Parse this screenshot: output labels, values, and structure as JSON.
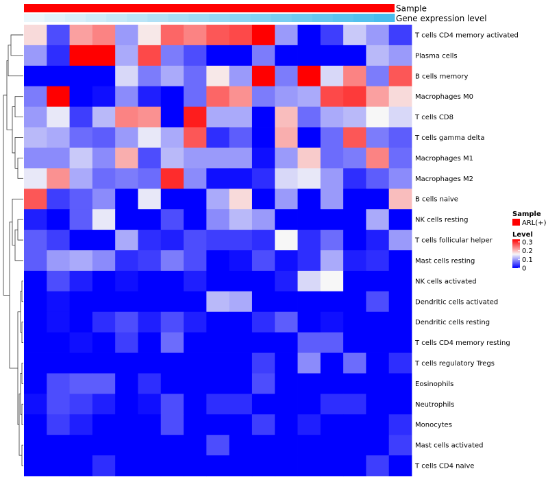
{
  "chart_data": {
    "type": "heatmap",
    "annotations": [
      {
        "label": "Sample",
        "color": "#ff0000"
      },
      {
        "label": "Gene expression level",
        "values": [
          0.02,
          0.05,
          0.08,
          0.11,
          0.14,
          0.17,
          0.2,
          0.23,
          0.26,
          0.29,
          0.32,
          0.35,
          0.38,
          0.41,
          0.44,
          0.47,
          0.5,
          0.53
        ]
      }
    ],
    "rows": [
      "T cells CD4 memory activated",
      "Plasma cells",
      "B cells memory",
      "Macrophages M0",
      "T cells CD8",
      "T cells gamma delta",
      "Macrophages M1",
      "Macrophages M2",
      "B cells naive",
      "NK cells resting",
      "T cells follicular helper",
      "Mast cells resting",
      "NK cells activated",
      "Dendritic cells activated",
      "Dendritic cells resting",
      "T cells CD4 memory resting",
      "T cells regulatory  Tregs",
      "Eosinophils",
      "Neutrophils",
      "Monocytes",
      "Mast cells activated",
      "T cells CD4 naive"
    ],
    "values": [
      [
        0.18,
        0.05,
        0.22,
        0.24,
        0.1,
        0.17,
        0.26,
        0.24,
        0.27,
        0.28,
        0.33,
        0.1,
        0.0,
        0.04,
        0.13,
        0.1,
        0.04
      ],
      [
        0.1,
        0.03,
        0.33,
        0.34,
        0.11,
        0.28,
        0.08,
        0.05,
        0.0,
        0.0,
        0.08,
        0.0,
        0.0,
        0.0,
        0.0,
        0.12,
        0.1
      ],
      [
        0.0,
        0.0,
        0.0,
        0.0,
        0.14,
        0.08,
        0.11,
        0.07,
        0.17,
        0.1,
        0.33,
        0.08,
        0.33,
        0.14,
        0.24,
        0.08,
        0.27
      ],
      [
        0.08,
        0.33,
        0.0,
        0.01,
        0.09,
        0.02,
        0.0,
        0.07,
        0.26,
        0.23,
        0.08,
        0.1,
        0.11,
        0.28,
        0.29,
        0.22,
        0.18
      ],
      [
        0.1,
        0.15,
        0.04,
        0.12,
        0.24,
        0.23,
        0.0,
        0.31,
        0.11,
        0.11,
        0.0,
        0.2,
        0.07,
        0.11,
        0.12,
        0.16,
        0.14
      ],
      [
        0.12,
        0.11,
        0.07,
        0.06,
        0.1,
        0.15,
        0.11,
        0.27,
        0.03,
        0.06,
        0.0,
        0.21,
        0.0,
        0.07,
        0.27,
        0.08,
        0.06
      ],
      [
        0.09,
        0.09,
        0.13,
        0.09,
        0.21,
        0.05,
        0.12,
        0.1,
        0.1,
        0.1,
        0.01,
        0.1,
        0.19,
        0.07,
        0.08,
        0.24,
        0.07
      ],
      [
        0.15,
        0.23,
        0.11,
        0.07,
        0.08,
        0.07,
        0.3,
        0.09,
        0.01,
        0.01,
        0.03,
        0.14,
        0.15,
        0.1,
        0.03,
        0.06,
        0.09
      ],
      [
        0.27,
        0.04,
        0.06,
        0.09,
        0.0,
        0.15,
        0.0,
        0.0,
        0.11,
        0.18,
        0.0,
        0.1,
        0.0,
        0.1,
        0.0,
        0.0,
        0.2
      ],
      [
        0.02,
        0.0,
        0.06,
        0.15,
        0.0,
        0.0,
        0.05,
        0.0,
        0.09,
        0.12,
        0.1,
        0.0,
        0.0,
        0.0,
        0.0,
        0.11,
        0.0
      ],
      [
        0.06,
        0.04,
        0.0,
        0.0,
        0.11,
        0.03,
        0.02,
        0.05,
        0.04,
        0.04,
        0.03,
        0.16,
        0.03,
        0.07,
        0.0,
        0.02,
        0.1
      ],
      [
        0.06,
        0.1,
        0.11,
        0.09,
        0.03,
        0.04,
        0.08,
        0.05,
        0.0,
        0.01,
        0.05,
        0.01,
        0.03,
        0.11,
        0.02,
        0.03,
        0.0
      ],
      [
        0.0,
        0.05,
        0.02,
        0.0,
        0.01,
        0.0,
        0.0,
        0.02,
        0.0,
        0.0,
        0.0,
        0.02,
        0.14,
        0.16,
        0.0,
        0.0,
        0.0
      ],
      [
        0.0,
        0.01,
        0.0,
        0.0,
        0.0,
        0.0,
        0.0,
        0.0,
        0.12,
        0.11,
        0.0,
        0.0,
        0.0,
        0.0,
        0.0,
        0.05,
        0.0
      ],
      [
        0.0,
        0.01,
        0.0,
        0.03,
        0.05,
        0.02,
        0.05,
        0.02,
        0.0,
        0.0,
        0.03,
        0.06,
        0.0,
        0.01,
        0.0,
        0.0,
        0.0
      ],
      [
        0.0,
        0.0,
        0.01,
        0.0,
        0.04,
        0.0,
        0.07,
        0.0,
        0.0,
        0.0,
        0.0,
        0.0,
        0.06,
        0.06,
        0.0,
        0.0,
        0.0
      ],
      [
        0.0,
        0.0,
        0.0,
        0.0,
        0.0,
        0.0,
        0.0,
        0.0,
        0.0,
        0.0,
        0.04,
        0.0,
        0.09,
        0.0,
        0.07,
        0.0,
        0.03
      ],
      [
        0.0,
        0.05,
        0.06,
        0.06,
        0.0,
        0.03,
        0.0,
        0.0,
        0.0,
        0.0,
        0.05,
        0.0,
        0.0,
        0.0,
        0.0,
        0.0,
        0.0
      ],
      [
        0.01,
        0.05,
        0.04,
        0.02,
        0.0,
        0.01,
        0.05,
        0.0,
        0.03,
        0.03,
        0.0,
        0.0,
        0.0,
        0.03,
        0.03,
        0.0,
        0.0
      ],
      [
        0.0,
        0.04,
        0.02,
        0.0,
        0.0,
        0.0,
        0.05,
        0.0,
        0.0,
        0.0,
        0.04,
        0.0,
        0.02,
        0.0,
        0.0,
        0.0,
        0.03
      ],
      [
        0.0,
        0.0,
        0.0,
        0.0,
        0.0,
        0.0,
        0.0,
        0.0,
        0.05,
        0.0,
        0.0,
        0.0,
        0.0,
        0.0,
        0.0,
        0.0,
        0.04
      ],
      [
        0.0,
        0.0,
        0.0,
        0.03,
        0.0,
        0.0,
        0.0,
        0.0,
        0.0,
        0.0,
        0.0,
        0.0,
        0.0,
        0.0,
        0.0,
        0.04,
        0.0
      ]
    ],
    "color_scale": {
      "low": "#0000ff",
      "mid": "#f7f7f7",
      "high": "#ff0000",
      "min": 0,
      "mid_value": 0.16,
      "max": 0.33
    },
    "legend": {
      "position": "right",
      "sample_title": "Sample",
      "sample_label": "ARL(+)",
      "level_title": "Level",
      "ticks": [
        "0.3",
        "0.2",
        "0.1",
        "0"
      ],
      "tick_values": [
        0.3,
        0.2,
        0.1,
        0
      ]
    },
    "dendrogram": "rows"
  }
}
